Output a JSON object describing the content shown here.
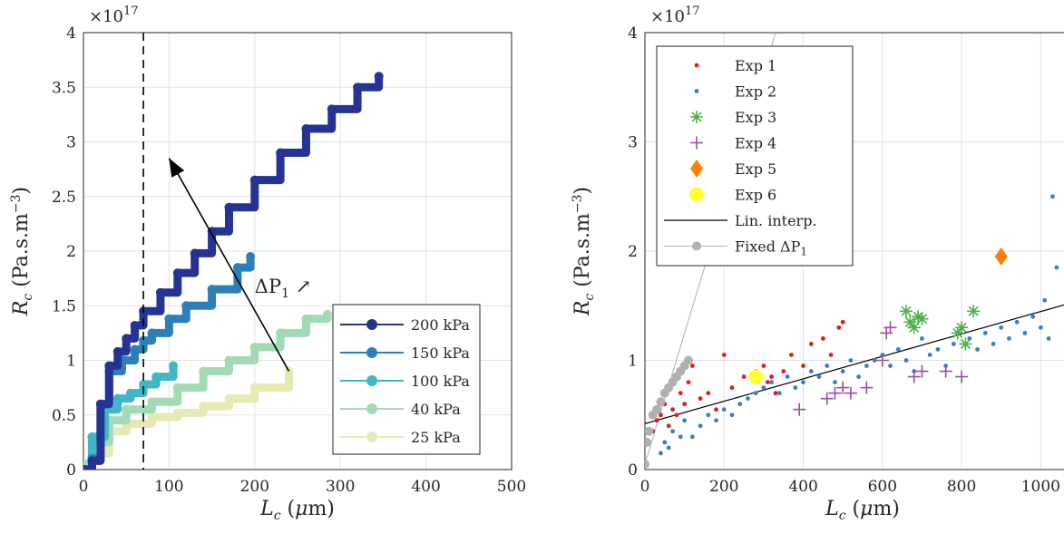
{
  "chart_data": [
    {
      "type": "line",
      "xlabel": "L_c (μm)",
      "ylabel": "R_c (Pa.s.m^-3)",
      "exponent": "×10^17",
      "xlim": [
        0,
        500
      ],
      "ylim": [
        0,
        4
      ],
      "xticks": [
        "0",
        "100",
        "200",
        "300",
        "400",
        "500"
      ],
      "yticks": [
        "0",
        "0.5",
        "1",
        "1.5",
        "2",
        "2.5",
        "3",
        "3.5",
        "4"
      ],
      "grid": true,
      "legend_position": "bottom-right",
      "annotation": "ΔP_1 ↗",
      "vline_x": 70,
      "series": [
        {
          "name": "200 kPa",
          "color": "#253494",
          "x": [
            2,
            10,
            20,
            30,
            40,
            50,
            60,
            70,
            90,
            110,
            130,
            150,
            170,
            200,
            230,
            260,
            290,
            320,
            345
          ],
          "y": [
            0,
            0.08,
            0.6,
            0.95,
            1.08,
            1.2,
            1.32,
            1.45,
            1.62,
            1.8,
            1.98,
            2.18,
            2.4,
            2.65,
            2.9,
            3.12,
            3.3,
            3.5,
            3.6
          ]
        },
        {
          "name": "150 kPa",
          "color": "#2c7fb8",
          "x": [
            2,
            10,
            20,
            30,
            45,
            60,
            70,
            80,
            100,
            120,
            150,
            180,
            195
          ],
          "y": [
            0,
            0.1,
            0.6,
            0.9,
            1.0,
            1.1,
            1.18,
            1.25,
            1.38,
            1.5,
            1.65,
            1.85,
            1.95
          ]
        },
        {
          "name": "100 kPa",
          "color": "#41b6c4",
          "x": [
            2,
            10,
            25,
            40,
            55,
            70,
            85,
            105
          ],
          "y": [
            0,
            0.3,
            0.55,
            0.65,
            0.7,
            0.78,
            0.85,
            0.95
          ]
        },
        {
          "name": "40 kPa",
          "color": "#a1dab4",
          "x": [
            2,
            10,
            30,
            50,
            80,
            110,
            140,
            170,
            200,
            230,
            260,
            285
          ],
          "y": [
            0.05,
            0.25,
            0.45,
            0.55,
            0.62,
            0.75,
            0.9,
            1.0,
            1.12,
            1.25,
            1.38,
            1.42
          ]
        },
        {
          "name": "25 kPa",
          "color": "#e6e9b4",
          "x": [
            2,
            10,
            30,
            50,
            80,
            110,
            140,
            170,
            200,
            240
          ],
          "y": [
            0.05,
            0.15,
            0.35,
            0.42,
            0.48,
            0.52,
            0.58,
            0.65,
            0.75,
            0.9
          ]
        }
      ]
    },
    {
      "type": "scatter",
      "xlabel": "L_c (μm)",
      "ylabel": "R_c (Pa.s.m^-3)",
      "exponent": "×10^17",
      "xlim": [
        0,
        1100
      ],
      "ylim": [
        0,
        4
      ],
      "xticks": [
        "0",
        "200",
        "400",
        "600",
        "800",
        "1000"
      ],
      "yticks": [
        "0",
        "1",
        "2",
        "3",
        "4"
      ],
      "grid": true,
      "legend_position": "top-left",
      "series": [
        {
          "name": "Exp 1",
          "color": "#e41a1c",
          "marker": "dot",
          "x": [
            20,
            30,
            40,
            50,
            60,
            70,
            80,
            90,
            100,
            110,
            120,
            140,
            160,
            180,
            200,
            220,
            250,
            280,
            300,
            310,
            320,
            330,
            350,
            370,
            400,
            420,
            450,
            470,
            490,
            500
          ],
          "y": [
            0.35,
            0.45,
            0.5,
            0.6,
            0.4,
            0.55,
            0.5,
            0.7,
            0.6,
            0.8,
            0.95,
            0.65,
            0.7,
            0.55,
            1.05,
            0.75,
            0.85,
            0.9,
            0.95,
            0.8,
            0.85,
            0.7,
            0.9,
            1.05,
            0.95,
            1.15,
            1.2,
            1.05,
            1.3,
            1.35
          ]
        },
        {
          "name": "Exp 2",
          "color": "#3a7fc1",
          "marker": "dot",
          "x": [
            40,
            50,
            60,
            70,
            90,
            100,
            120,
            140,
            160,
            180,
            200,
            220,
            240,
            260,
            280,
            300,
            320,
            340,
            360,
            380,
            400,
            420,
            440,
            460,
            480,
            500,
            520,
            540,
            560,
            580,
            600,
            620,
            640,
            660,
            680,
            700,
            720,
            740,
            760,
            780,
            800,
            820,
            840,
            860,
            880,
            900,
            920,
            940,
            960,
            980,
            1000,
            1010,
            1020,
            1030,
            1040
          ],
          "y": [
            0.15,
            0.25,
            0.2,
            0.35,
            0.3,
            0.45,
            0.3,
            0.4,
            0.5,
            0.45,
            0.55,
            0.5,
            0.6,
            0.65,
            0.7,
            0.75,
            0.8,
            0.7,
            0.85,
            0.75,
            0.8,
            0.9,
            0.85,
            0.95,
            0.8,
            0.9,
            1.0,
            0.85,
            0.95,
            1.0,
            1.05,
            0.95,
            1.1,
            1.0,
            0.9,
            1.2,
            1.05,
            1.1,
            0.95,
            1.15,
            1.3,
            1.2,
            1.1,
            1.25,
            1.15,
            1.3,
            1.2,
            1.35,
            1.25,
            1.4,
            1.3,
            1.55,
            1.2,
            2.5,
            1.85
          ]
        },
        {
          "name": "Exp 3",
          "color": "#4daf4a",
          "marker": "star",
          "x": [
            660,
            670,
            680,
            690,
            700,
            790,
            800,
            810,
            830
          ],
          "y": [
            1.45,
            1.35,
            1.3,
            1.4,
            1.38,
            1.25,
            1.3,
            1.15,
            1.45
          ]
        },
        {
          "name": "Exp 4",
          "color": "#984ea3",
          "marker": "plus",
          "x": [
            390,
            460,
            480,
            500,
            520,
            560,
            600,
            610,
            620,
            680,
            700,
            760,
            800
          ],
          "y": [
            0.55,
            0.65,
            0.7,
            0.75,
            0.7,
            0.75,
            1.0,
            1.25,
            1.3,
            0.85,
            0.9,
            0.9,
            0.85
          ]
        },
        {
          "name": "Exp 5",
          "color": "#ff7f00",
          "marker": "diamond",
          "x": [
            900
          ],
          "y": [
            1.95
          ]
        },
        {
          "name": "Exp 6",
          "color": "#ffff33",
          "marker": "circle",
          "x": [
            280
          ],
          "y": [
            0.85
          ]
        },
        {
          "name": "Lin. interp.",
          "color": "#000000",
          "marker": "line",
          "x": [
            0,
            1100
          ],
          "y": [
            0.42,
            1.55
          ]
        },
        {
          "name": "Fixed ΔP_1",
          "color": "#b0b0b0",
          "marker": "circle-line",
          "x": [
            0,
            5,
            10,
            20,
            30,
            40,
            50,
            60,
            70,
            80,
            90,
            100,
            110
          ],
          "y": [
            0.05,
            0.25,
            0.35,
            0.5,
            0.55,
            0.62,
            0.7,
            0.75,
            0.8,
            0.85,
            0.9,
            0.95,
            1.0
          ],
          "line_x": [
            0,
            330
          ],
          "line_y": [
            0.05,
            4.0
          ]
        }
      ]
    }
  ]
}
